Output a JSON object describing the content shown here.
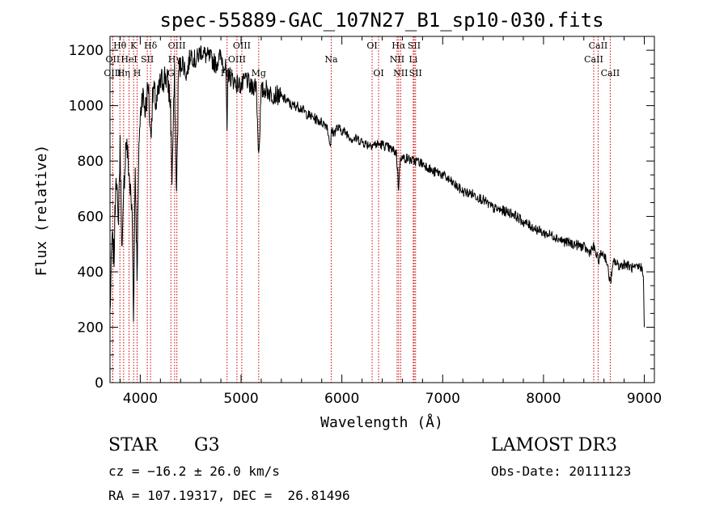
{
  "chart_data": {
    "type": "line",
    "title": "spec-55889-GAC_107N27_B1_sp10-030.fits",
    "xlabel": "Wavelength (Å)",
    "ylabel": "Flux (relative)",
    "xlim": [
      3700,
      9100
    ],
    "ylim": [
      0,
      1250
    ],
    "x_ticks": [
      4000,
      5000,
      6000,
      7000,
      8000,
      9000
    ],
    "y_ticks": [
      0,
      200,
      400,
      600,
      800,
      1000,
      1200
    ],
    "series": [
      {
        "name": "flux",
        "x": [
          3700,
          3720,
          3740,
          3760,
          3780,
          3800,
          3820,
          3840,
          3860,
          3880,
          3900,
          3920,
          3933,
          3950,
          3968,
          3990,
          4020,
          4050,
          4080,
          4101,
          4130,
          4160,
          4200,
          4250,
          4280,
          4300,
          4315,
          4340,
          4360,
          4380,
          4420,
          4460,
          4500,
          4550,
          4600,
          4650,
          4700,
          4750,
          4800,
          4850,
          4861,
          4870,
          4900,
          4960,
          5007,
          5050,
          5100,
          5150,
          5175,
          5200,
          5250,
          5300,
          5350,
          5400,
          5450,
          5500,
          5550,
          5600,
          5650,
          5700,
          5750,
          5800,
          5850,
          5890,
          5896,
          5920,
          5950,
          6000,
          6050,
          6100,
          6150,
          6200,
          6250,
          6300,
          6350,
          6400,
          6450,
          6500,
          6540,
          6563,
          6580,
          6600,
          6650,
          6700,
          6750,
          6800,
          6850,
          6900,
          6950,
          7000,
          7100,
          7200,
          7300,
          7400,
          7500,
          7600,
          7700,
          7800,
          7900,
          8000,
          8100,
          8200,
          8300,
          8400,
          8450,
          8498,
          8542,
          8580,
          8620,
          8662,
          8700,
          8750,
          8800,
          8850,
          8900,
          8960,
          8990,
          9000
        ],
        "y": [
          250,
          520,
          450,
          790,
          560,
          850,
          470,
          720,
          880,
          800,
          700,
          600,
          250,
          780,
          400,
          900,
          1050,
          980,
          1080,
          890,
          1060,
          1000,
          1080,
          1110,
          1070,
          1000,
          740,
          1100,
          680,
          1130,
          1160,
          1110,
          1190,
          1160,
          1200,
          1180,
          1170,
          1150,
          1180,
          1130,
          880,
          1120,
          1100,
          1080,
          1070,
          1100,
          1060,
          1080,
          820,
          1050,
          1060,
          1040,
          1040,
          1030,
          1020,
          1000,
          1000,
          990,
          970,
          960,
          950,
          940,
          930,
          850,
          910,
          900,
          920,
          910,
          900,
          880,
          880,
          870,
          860,
          860,
          860,
          860,
          850,
          840,
          830,
          700,
          820,
          810,
          810,
          800,
          800,
          790,
          780,
          760,
          760,
          750,
          720,
          690,
          680,
          660,
          630,
          620,
          610,
          580,
          560,
          540,
          530,
          510,
          500,
          490,
          470,
          490,
          440,
          470,
          450,
          360,
          440,
          420,
          430,
          420,
          410,
          420,
          400,
          200
        ]
      }
    ],
    "spectral_lines": [
      {
        "label": "Hθ",
        "x": 3798,
        "row": 0
      },
      {
        "label": "OII",
        "x": 3727,
        "row": 1
      },
      {
        "label": "OIII",
        "x": 3727,
        "row": 2
      },
      {
        "label": "HeI",
        "x": 3889,
        "row": 1
      },
      {
        "label": "Hη",
        "x": 3835,
        "row": 2
      },
      {
        "label": "K",
        "x": 3934,
        "row": 0
      },
      {
        "label": "SII",
        "x": 4070,
        "row": 1
      },
      {
        "label": "H",
        "x": 3969,
        "row": 2
      },
      {
        "label": "Hδ",
        "x": 4102,
        "row": 0
      },
      {
        "label": "OIII",
        "x": 4363,
        "row": 0
      },
      {
        "label": "Hγ",
        "x": 4341,
        "row": 1
      },
      {
        "label": "G",
        "x": 4304,
        "row": 2
      },
      {
        "label": "OIII",
        "x": 5007,
        "row": 0
      },
      {
        "label": "OIII",
        "x": 4959,
        "row": 1
      },
      {
        "label": "Hβ",
        "x": 4861,
        "row": 2
      },
      {
        "label": "Mg",
        "x": 5175,
        "row": 2
      },
      {
        "label": "Na",
        "x": 5894,
        "row": 1
      },
      {
        "label": "OI",
        "x": 6300,
        "row": 0
      },
      {
        "label": "OI",
        "x": 6364,
        "row": 2
      },
      {
        "label": "Hα",
        "x": 6563,
        "row": 0
      },
      {
        "label": "NII",
        "x": 6548,
        "row": 1
      },
      {
        "label": "NII",
        "x": 6583,
        "row": 2
      },
      {
        "label": "SII",
        "x": 6717,
        "row": 0
      },
      {
        "label": "Li",
        "x": 6708,
        "row": 1
      },
      {
        "label": "SII",
        "x": 6731,
        "row": 2
      },
      {
        "label": "CaII",
        "x": 8542,
        "row": 0
      },
      {
        "label": "CaII",
        "x": 8498,
        "row": 1
      },
      {
        "label": "CaII",
        "x": 8662,
        "row": 2
      }
    ],
    "colors": {
      "spectrum": "#000000",
      "lines": "#cc0000",
      "axes": "#000000"
    }
  },
  "info": {
    "object_class": "STAR",
    "subclass": "G3",
    "survey": "LAMOST DR3",
    "cz": "cz = −16.2 ± 26.0 km/s",
    "obs_date": "Obs-Date: 20111123",
    "coords": "RA = 107.19317, DEC =  26.81496"
  }
}
